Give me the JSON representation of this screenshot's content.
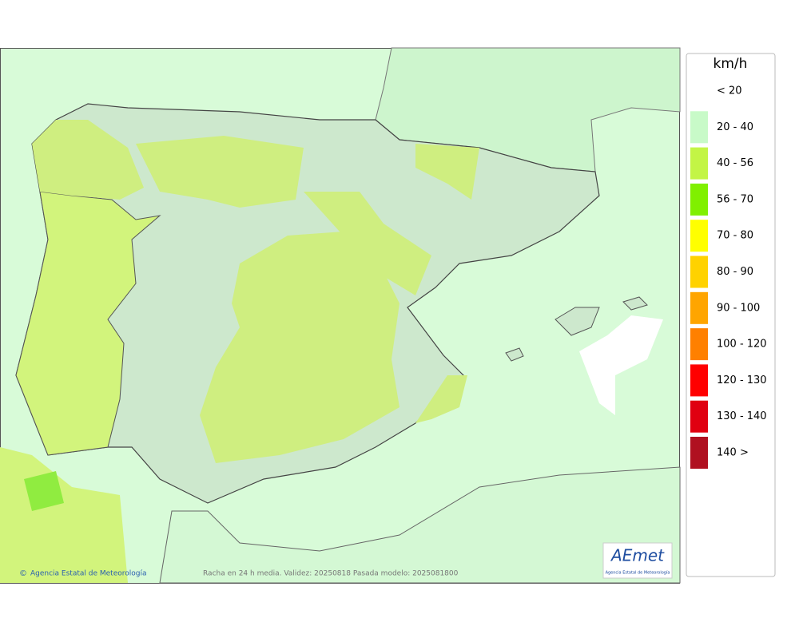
{
  "legend": {
    "unit": "km/h",
    "entries": [
      {
        "label": "< 20"
      },
      {
        "label": "20 - 40",
        "color": "#c8fac8"
      },
      {
        "label": "40 - 56",
        "color": "#c3f545"
      },
      {
        "label": "56 - 70",
        "color": "#80f000"
      },
      {
        "label": "70 - 80",
        "color": "#ffff00"
      },
      {
        "label": "80 - 90",
        "color": "#ffd200"
      },
      {
        "label": "90 - 100",
        "color": "#ffa500"
      },
      {
        "label": "100 - 120",
        "color": "#ff8000"
      },
      {
        "label": "120 - 130",
        "color": "#ff0000"
      },
      {
        "label": "130 - 140",
        "color": "#e00010"
      },
      {
        "label": "140 >",
        "color": "#b01020"
      }
    ]
  },
  "footer": {
    "agency": "Agencia Estatal de Meteorología",
    "caption": "Racha en 24 h media. Validez: 20250818 Pasada modelo: 2025081800"
  },
  "logo": {
    "text": "AEmet",
    "subtext": "Agencia Estatal de Meteorología"
  }
}
